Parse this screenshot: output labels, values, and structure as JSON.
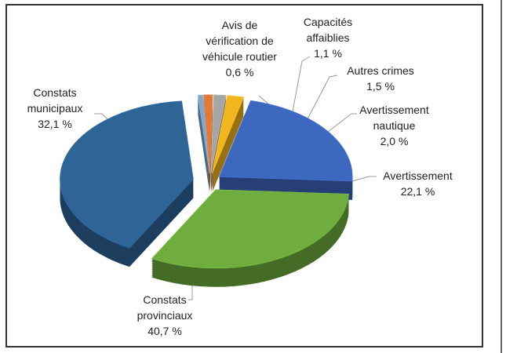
{
  "chart_data": {
    "type": "pie",
    "categories": [
      "Avis de vérification de véhicule routier",
      "Capacités affaiblies",
      "Autres crimes",
      "Avertissement nautique",
      "Avertissement",
      "Constats municipaux",
      "Constats provinciaux"
    ],
    "values": [
      0.6,
      1.1,
      1.5,
      2.0,
      22.1,
      32.1,
      40.7
    ],
    "value_labels": [
      "0,6 %",
      "1,1 %",
      "1,5 %",
      "2,0 %",
      "22,1 %",
      "32,1 %",
      "40,7 %"
    ],
    "colors": [
      "#7fa7cf",
      "#e07a36",
      "#a6a6a6",
      "#f2b51f",
      "#3d68c0",
      "#6fae3e",
      "#2f6497"
    ]
  }
}
